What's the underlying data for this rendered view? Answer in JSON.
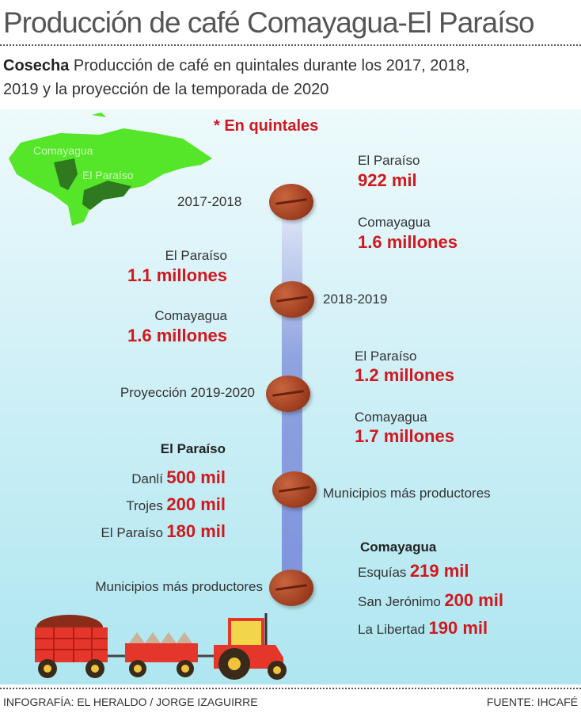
{
  "title": "Producción de café Comayagua-El Paraíso",
  "subtitle": {
    "lead": "Cosecha",
    "line1": " Producción de café en quintales durante los 2017,  2018,",
    "line2": "2019  y  la proyección de la temporada de 2020"
  },
  "note": "* En quintales",
  "map": {
    "labels": [
      "Comayagua",
      "El Paraíso"
    ],
    "color": "#55e62a",
    "region_color": "#2f7a1e"
  },
  "timeline": [
    {
      "season": "2017-2018",
      "entries": [
        {
          "name": "El Paraíso",
          "value": "922 mil"
        },
        {
          "name": "Comayagua",
          "value": "1.6 millones"
        }
      ]
    },
    {
      "season": "2018-2019",
      "entries": [
        {
          "name": "El Paraíso",
          "value": "1.1 millones"
        },
        {
          "name": "Comayagua",
          "value": "1.6 millones"
        }
      ]
    },
    {
      "season": "Proyección 2019-2020",
      "entries": [
        {
          "name": "El Paraíso",
          "value": "1.2 millones"
        },
        {
          "name": "Comayagua",
          "value": "1.7 millones"
        }
      ]
    }
  ],
  "municipios": [
    {
      "label": "Municipios más productores",
      "department": "El Paraíso",
      "items": [
        {
          "name": "Danlí",
          "value": "500 mil"
        },
        {
          "name": "Trojes",
          "value": "200  mil"
        },
        {
          "name": "El Paraíso",
          "value": "180 mil"
        }
      ]
    },
    {
      "label": "Municipios más productores",
      "department": "Comayagua",
      "items": [
        {
          "name": "Esquías",
          "value": "219 mil"
        },
        {
          "name": "San Jerónimo",
          "value": "200  mil"
        },
        {
          "name": "La Libertad",
          "value": "190 mil"
        }
      ]
    }
  ],
  "colors": {
    "value": "#d0181e",
    "bean": "#9a3b1e",
    "bar": "#8fa3e0"
  },
  "footer": {
    "credit": "INFOGRAFÍA: EL HERALDO / JORGE IZAGUIRRE",
    "source": "FUENTE: IHCAFÉ"
  }
}
